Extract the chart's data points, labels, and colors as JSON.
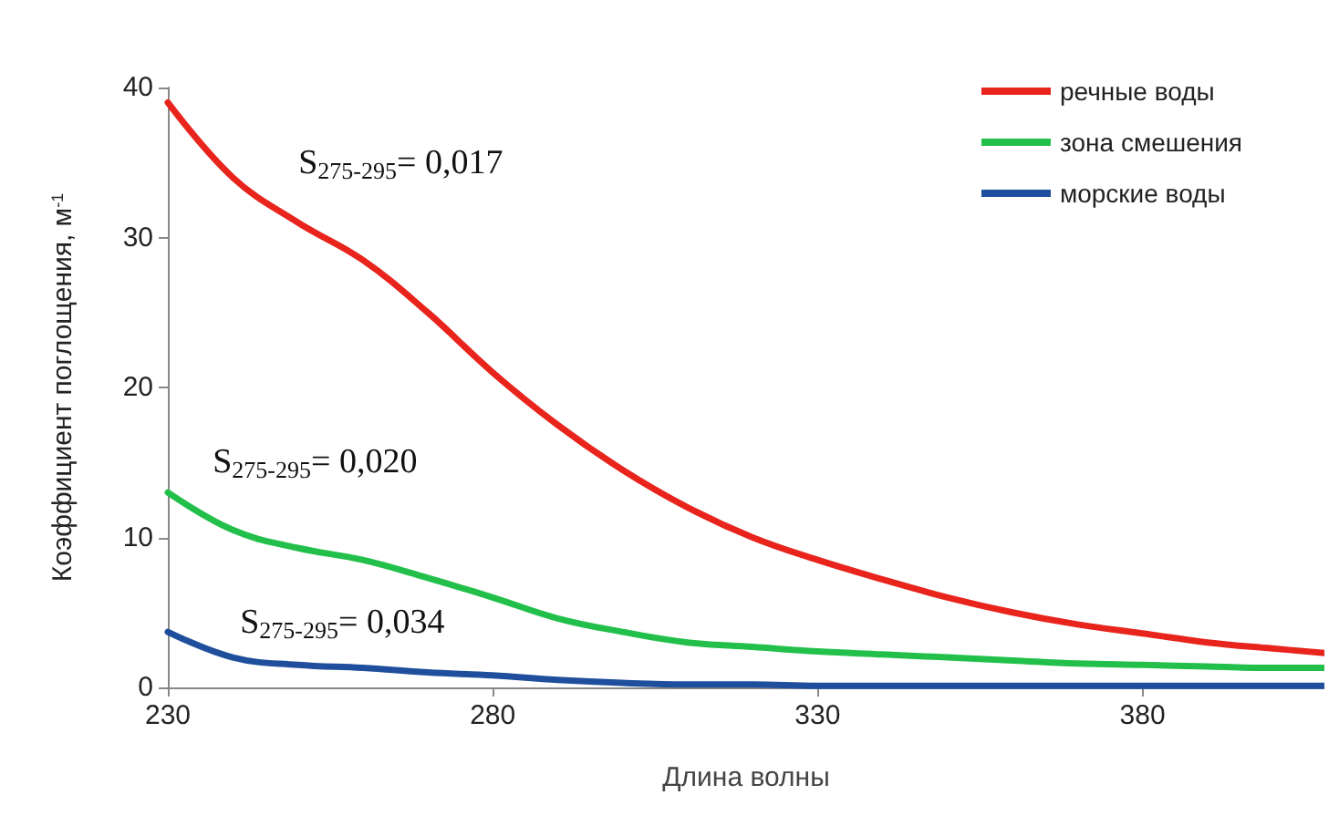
{
  "chart_data": {
    "type": "line",
    "xlabel": "Длина волны",
    "ylabel": "Коэффициент поглощения, м$^{-1}$",
    "x": [
      230,
      240,
      250,
      260,
      270,
      280,
      290,
      300,
      310,
      320,
      330,
      340,
      350,
      360,
      370,
      380,
      390,
      400,
      408
    ],
    "xlim": [
      230,
      408
    ],
    "xticks": [
      230,
      280,
      330,
      380
    ],
    "ylim": [
      0,
      40
    ],
    "yticks": [
      0,
      10,
      20,
      30,
      40
    ],
    "grid": false,
    "legend": "top right",
    "series": [
      {
        "name": "речные воды",
        "color": "#e8241c",
        "values": [
          39,
          34,
          31,
          28.5,
          25,
          21,
          17.5,
          14.5,
          12,
          10,
          8.5,
          7.2,
          6,
          5,
          4.2,
          3.6,
          3,
          2.6,
          2.3
        ]
      },
      {
        "name": "зона смешения",
        "color": "#22c04a",
        "values": [
          13,
          10.5,
          9.3,
          8.5,
          7.3,
          6,
          4.6,
          3.7,
          3,
          2.7,
          2.4,
          2.2,
          2,
          1.8,
          1.6,
          1.5,
          1.4,
          1.3,
          1.3
        ]
      },
      {
        "name": "морские воды",
        "color": "#1f4f9c",
        "values": [
          3.7,
          2,
          1.5,
          1.3,
          1,
          0.8,
          0.5,
          0.3,
          0.2,
          0.2,
          0.1,
          0.1,
          0.1,
          0.1,
          0.1,
          0.1,
          0.1,
          0.1,
          0.1
        ]
      }
    ],
    "annotations": [
      "S$_{275-295}$= 0,017",
      "S$_{275-295}$= 0,020",
      "S$_{275-295}$= 0,034"
    ]
  }
}
